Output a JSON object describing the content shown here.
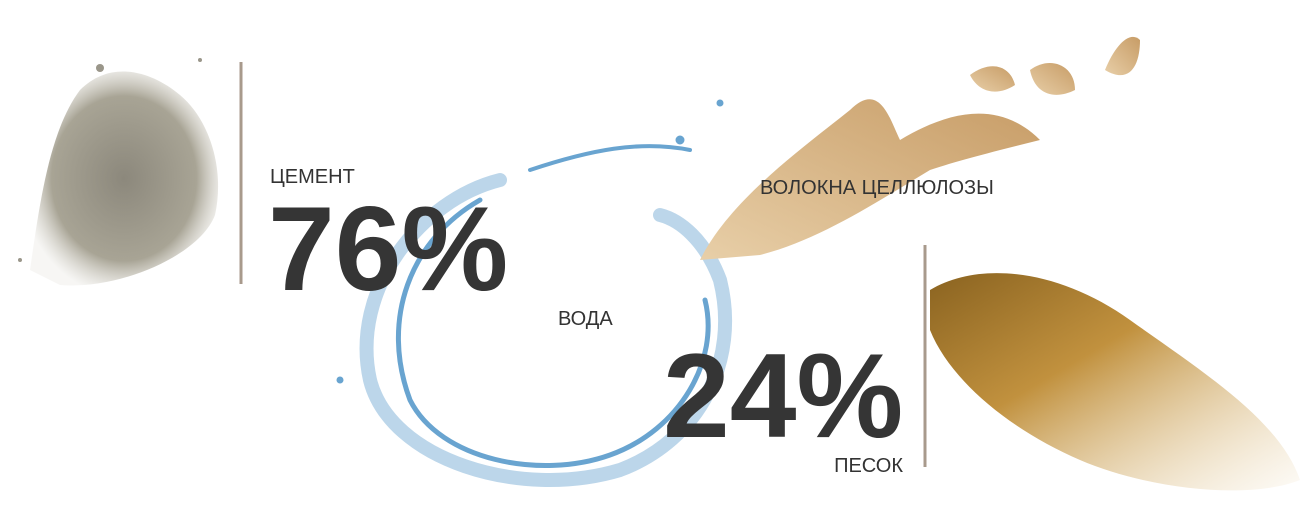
{
  "cement": {
    "label": "ЦЕМЕНТ",
    "value": "76%"
  },
  "water": {
    "label": "ВОДА"
  },
  "cellulose": {
    "label": "ВОЛОКНА ЦЕЛЛЮЛОЗЫ"
  },
  "sand": {
    "label": "ПЕСОК",
    "value": "24%"
  }
}
